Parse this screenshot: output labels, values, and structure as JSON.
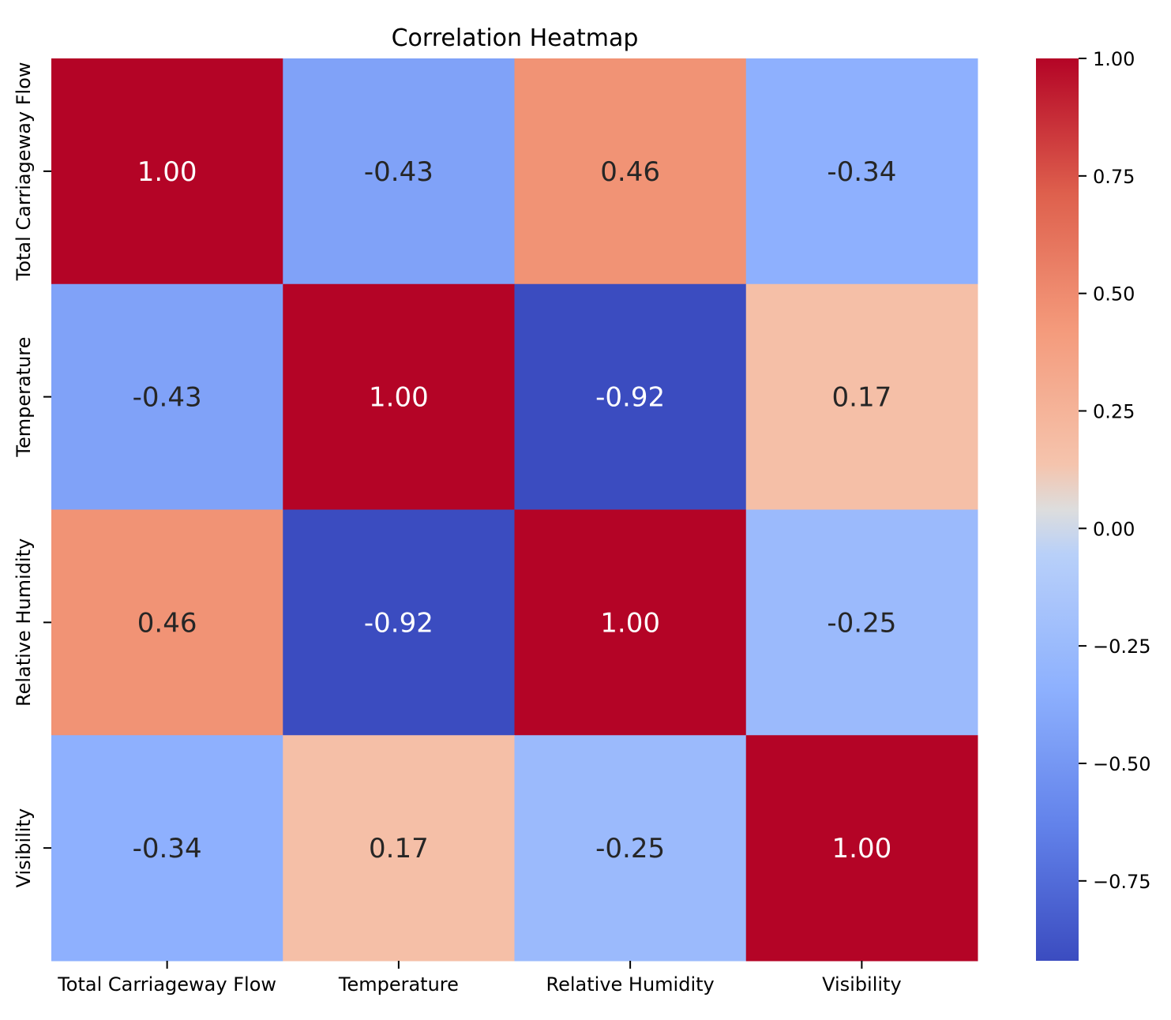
{
  "chart_data": {
    "type": "heatmap",
    "title": "Correlation Heatmap",
    "xlabel": "",
    "ylabel": "",
    "x_categories": [
      "Total Carriageway Flow",
      "Temperature",
      "Relative Humidity",
      "Visibility"
    ],
    "y_categories": [
      "Total Carriageway Flow",
      "Temperature",
      "Relative Humidity",
      "Visibility"
    ],
    "values": [
      [
        1.0,
        -0.43,
        0.46,
        -0.34
      ],
      [
        -0.43,
        1.0,
        -0.92,
        0.17
      ],
      [
        0.46,
        -0.92,
        1.0,
        -0.25
      ],
      [
        -0.34,
        0.17,
        -0.25,
        1.0
      ]
    ],
    "value_labels": [
      [
        "1.00",
        "-0.43",
        "0.46",
        "-0.34"
      ],
      [
        "-0.43",
        "1.00",
        "-0.92",
        "0.17"
      ],
      [
        "0.46",
        "-0.92",
        "1.00",
        "-0.25"
      ],
      [
        "-0.34",
        "0.17",
        "-0.25",
        "1.00"
      ]
    ],
    "colormap": "coolwarm",
    "value_range": [
      -0.92,
      1.0
    ],
    "colorbar": {
      "ticks": [
        1.0,
        0.75,
        0.5,
        0.25,
        0.0,
        -0.25,
        -0.5,
        -0.75
      ],
      "tick_labels": [
        "1.00",
        "0.75",
        "0.50",
        "0.25",
        "0.00",
        "−0.25",
        "−0.50",
        "−0.75"
      ],
      "position": "right"
    },
    "colors": {
      "high": "#b40426",
      "mid": "#dddddd",
      "low": "#3b4cc0"
    }
  }
}
